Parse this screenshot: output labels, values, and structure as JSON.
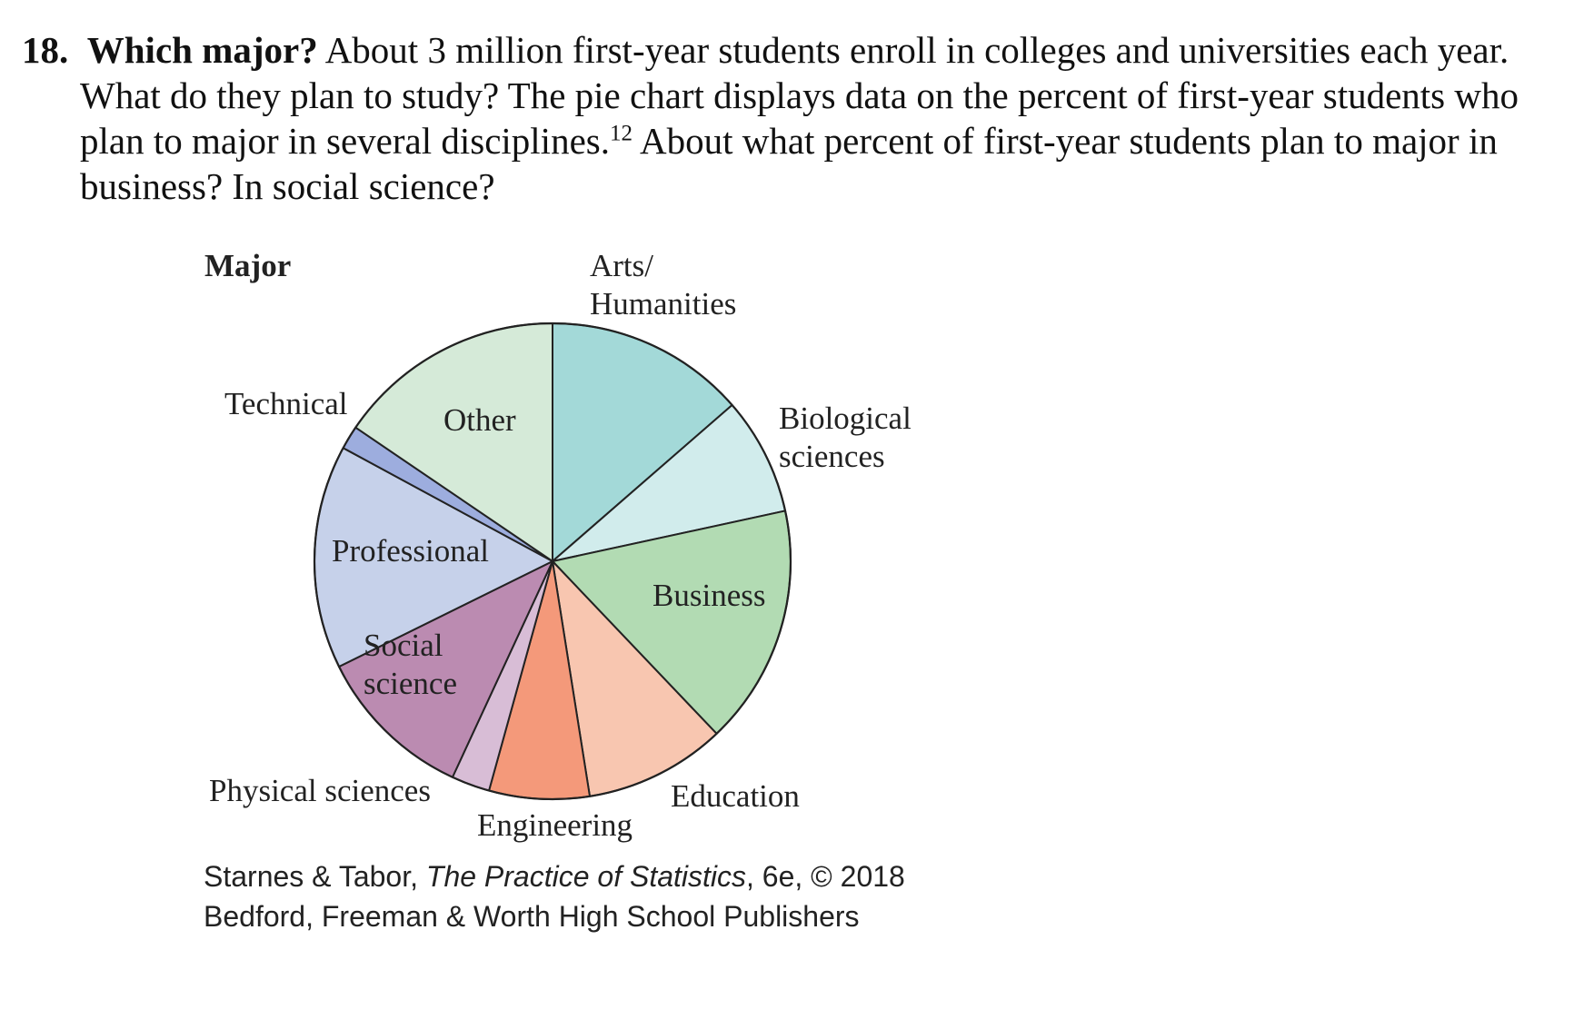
{
  "problem": {
    "number": "18.",
    "title": "Which major?",
    "text_before_ref": "About 3 million first-year students enroll in colleges and universities each year. What do they plan to study? The pie chart displays data on the percent of first-year students who plan to major in several disciplines.",
    "footnote_ref": "12",
    "text_after_ref": "About what percent of first-year students plan to major in business? In social science?"
  },
  "chart_data": {
    "type": "pie",
    "title": "Major",
    "start": "12 o'clock, clockwise",
    "slices": [
      {
        "key": "arts",
        "label_lines": [
          "Arts/",
          "Humanities"
        ],
        "value": 13.6,
        "color": "#a3d9d8"
      },
      {
        "key": "bio",
        "label_lines": [
          "Biological",
          "sciences"
        ],
        "value": 8.0,
        "color": "#d1ecec"
      },
      {
        "key": "business",
        "label_lines": [
          "Business"
        ],
        "value": 16.3,
        "color": "#b2dbb3"
      },
      {
        "key": "education",
        "label_lines": [
          "Education"
        ],
        "value": 9.6,
        "color": "#f8c6b0"
      },
      {
        "key": "engineering",
        "label_lines": [
          "Engineering"
        ],
        "value": 6.8,
        "color": "#f4997a"
      },
      {
        "key": "physical",
        "label_lines": [
          "Physical sciences"
        ],
        "value": 2.6,
        "color": "#d8bdd6"
      },
      {
        "key": "social",
        "label_lines": [
          "Social",
          "science"
        ],
        "value": 10.8,
        "color": "#bb8bb1"
      },
      {
        "key": "professional",
        "label_lines": [
          "Professional"
        ],
        "value": 15.2,
        "color": "#c6d1ea"
      },
      {
        "key": "technical",
        "label_lines": [
          "Technical"
        ],
        "value": 1.6,
        "color": "#9dadde"
      },
      {
        "key": "other",
        "label_lines": [
          "Other"
        ],
        "value": 15.5,
        "color": "#d5ead8"
      }
    ]
  },
  "credit": {
    "line1_pre": "Starnes & Tabor, ",
    "line1_title": "The Practice of Statistics",
    "line1_post": ", 6e, © 2018",
    "line2": "Bedford, Freeman & Worth High School Publishers"
  }
}
